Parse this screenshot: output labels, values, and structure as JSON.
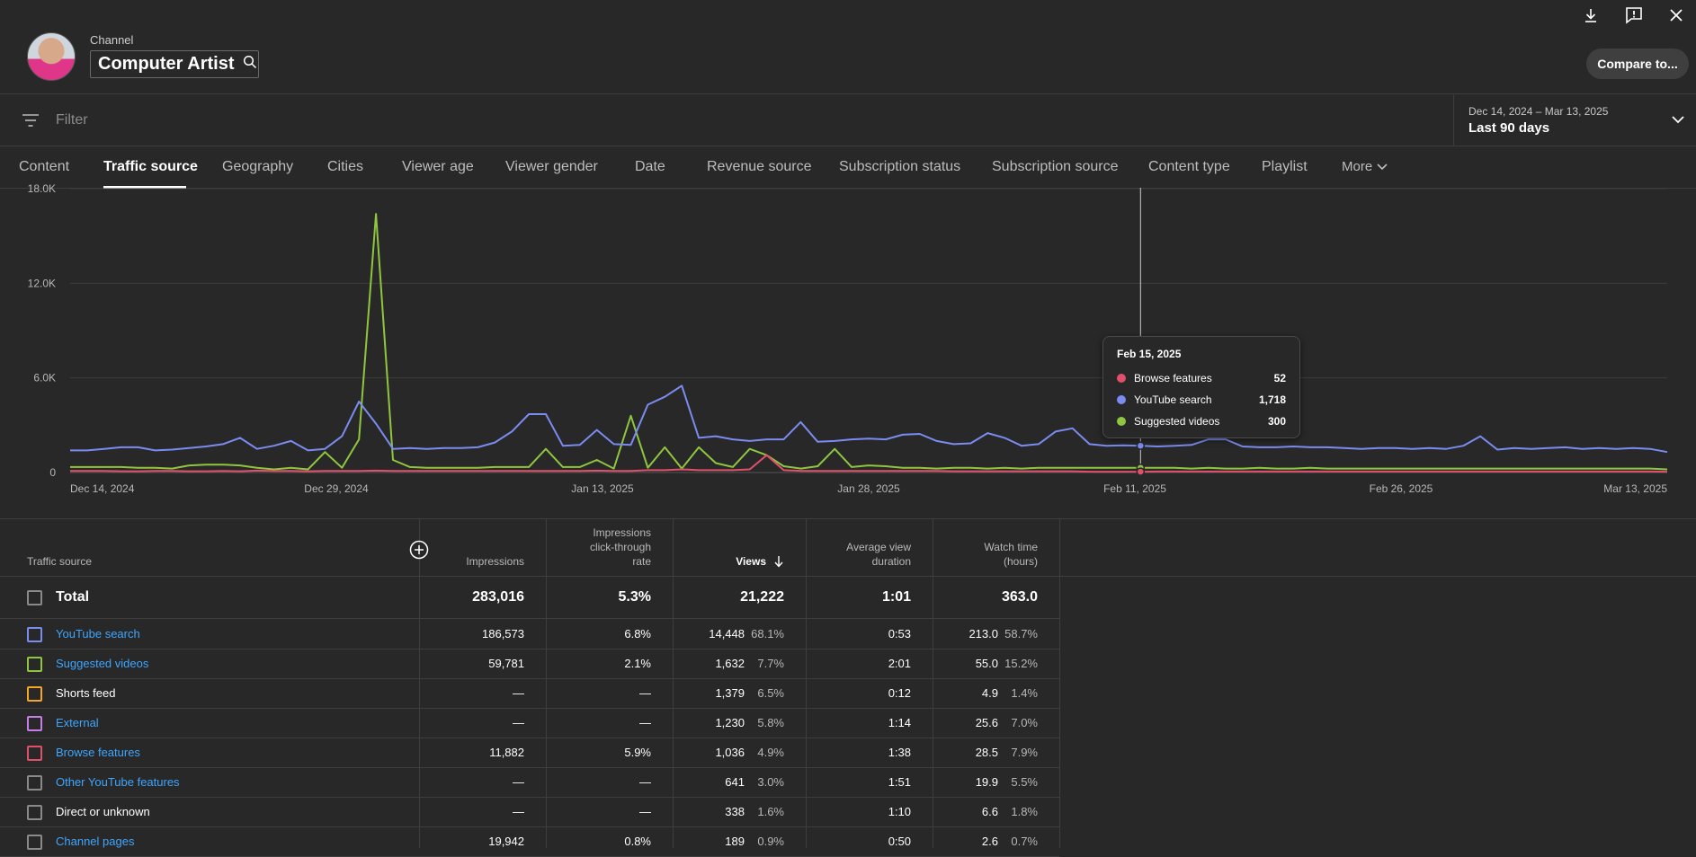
{
  "header": {
    "channel_label": "Channel",
    "channel_name": "Computer Artist",
    "compare_label": "Compare to..."
  },
  "filter": {
    "placeholder": "Filter"
  },
  "date_range": {
    "range": "Dec 14, 2024 – Mar 13, 2025",
    "preset": "Last 90 days"
  },
  "tabs": [
    {
      "label": "Content"
    },
    {
      "label": "Traffic source"
    },
    {
      "label": "Geography"
    },
    {
      "label": "Cities"
    },
    {
      "label": "Viewer age"
    },
    {
      "label": "Viewer gender"
    },
    {
      "label": "Date"
    },
    {
      "label": "Revenue source"
    },
    {
      "label": "Subscription status"
    },
    {
      "label": "Subscription source"
    },
    {
      "label": "Content type"
    },
    {
      "label": "Playlist"
    },
    {
      "label": "More"
    }
  ],
  "tooltip": {
    "date": "Feb 15, 2025",
    "rows": [
      {
        "name": "Browse features",
        "value": "52"
      },
      {
        "name": "YouTube search",
        "value": "1,718"
      },
      {
        "name": "Suggested videos",
        "value": "300"
      }
    ]
  },
  "chart_data": {
    "type": "line",
    "x_labels": [
      "Dec 14, 2024",
      "Dec 29, 2024",
      "Jan 13, 2025",
      "Jan 28, 2025",
      "Feb 11, 2025",
      "Feb 26, 2025",
      "Mar 13, 2025"
    ],
    "y_ticks": [
      "0",
      "6.0K",
      "12.0K",
      "18.0K"
    ],
    "ylim": [
      0,
      18000
    ],
    "grid": true,
    "colors": {
      "youtube_search": "#7b8cf0",
      "suggested": "#8fc63f",
      "browse": "#e0506b"
    },
    "series": [
      {
        "name": "YouTube search",
        "color": "#7b8cf0",
        "values": [
          1400,
          1400,
          1500,
          1600,
          1600,
          1400,
          1450,
          1550,
          1650,
          1800,
          2200,
          1500,
          1700,
          2000,
          1400,
          1500,
          2300,
          4500,
          3100,
          1500,
          1550,
          1500,
          1550,
          1550,
          1600,
          1900,
          2600,
          3700,
          3700,
          1700,
          1750,
          2700,
          1800,
          1750,
          4300,
          4800,
          5500,
          2200,
          2300,
          2100,
          2000,
          2100,
          2100,
          3200,
          1950,
          2000,
          2100,
          2150,
          2100,
          2400,
          2450,
          2000,
          1800,
          1850,
          2500,
          2200,
          1700,
          1800,
          2600,
          2800,
          1800,
          1700,
          1718,
          1700,
          1650,
          1700,
          1750,
          2100,
          2100,
          1650,
          1600,
          1600,
          1650,
          1600,
          1600,
          1550,
          1500,
          1550,
          1550,
          1500,
          1550,
          1500,
          1700,
          2300,
          1450,
          1550,
          1500,
          1550,
          1600,
          1500,
          1550,
          1500,
          1550,
          1500,
          1300
        ]
      },
      {
        "name": "Suggested videos",
        "color": "#8fc63f",
        "values": [
          350,
          350,
          350,
          350,
          300,
          300,
          250,
          450,
          500,
          500,
          450,
          300,
          200,
          300,
          200,
          1300,
          300,
          2100,
          16400,
          800,
          350,
          300,
          300,
          300,
          300,
          350,
          350,
          350,
          1500,
          350,
          350,
          800,
          250,
          3600,
          300,
          1600,
          250,
          1600,
          600,
          350,
          1500,
          1100,
          400,
          250,
          400,
          1500,
          350,
          450,
          400,
          300,
          300,
          250,
          300,
          300,
          250,
          300,
          250,
          300,
          300,
          300,
          300,
          300,
          300,
          300,
          300,
          300,
          250,
          300,
          250,
          250,
          300,
          250,
          250,
          300,
          250,
          250,
          250,
          250,
          250,
          250,
          250,
          250,
          250,
          250,
          250,
          250,
          250,
          250,
          250,
          250,
          250,
          250,
          250,
          250,
          200
        ]
      },
      {
        "name": "Browse features",
        "color": "#e0506b",
        "values": [
          100,
          100,
          100,
          80,
          80,
          100,
          100,
          80,
          80,
          100,
          80,
          120,
          100,
          100,
          80,
          100,
          100,
          100,
          120,
          100,
          100,
          100,
          100,
          100,
          100,
          100,
          100,
          100,
          100,
          100,
          100,
          120,
          100,
          100,
          150,
          150,
          200,
          150,
          150,
          150,
          200,
          1100,
          150,
          100,
          100,
          100,
          100,
          100,
          100,
          100,
          100,
          100,
          80,
          80,
          80,
          80,
          80,
          80,
          80,
          80,
          52,
          52,
          52,
          52,
          60,
          60,
          60,
          60,
          60,
          60,
          60,
          60,
          60,
          60,
          60,
          60,
          60,
          60,
          60,
          60,
          60,
          60,
          60,
          60,
          60,
          60,
          60,
          60,
          60,
          60,
          60,
          60,
          60,
          60,
          50
        ]
      }
    ]
  },
  "table": {
    "headers": {
      "source": "Traffic source",
      "impressions": "Impressions",
      "ctr_1": "Impressions",
      "ctr_2": "click-through",
      "ctr_3": "rate",
      "views": "Views",
      "avd_1": "Average view",
      "avd_2": "duration",
      "wt_1": "Watch time",
      "wt_2": "(hours)"
    },
    "total": {
      "name": "Total",
      "impressions": "283,016",
      "ctr": "5.3%",
      "views": "21,222",
      "avd": "1:01",
      "watch": "363.0"
    },
    "rows": [
      {
        "name": "YouTube search",
        "color": "#7b8cf0",
        "link": true,
        "impressions": "186,573",
        "ctr": "6.8%",
        "views": "14,448",
        "views_pct": "68.1%",
        "avd": "0:53",
        "watch": "213.0",
        "watch_pct": "58.7%"
      },
      {
        "name": "Suggested videos",
        "color": "#8fc63f",
        "link": true,
        "impressions": "59,781",
        "ctr": "2.1%",
        "views": "1,632",
        "views_pct": "7.7%",
        "avd": "2:01",
        "watch": "55.0",
        "watch_pct": "15.2%"
      },
      {
        "name": "Shorts feed",
        "color": "#f5a623",
        "link": false,
        "impressions": "—",
        "ctr": "—",
        "views": "1,379",
        "views_pct": "6.5%",
        "avd": "0:12",
        "watch": "4.9",
        "watch_pct": "1.4%"
      },
      {
        "name": "External",
        "color": "#c77ce8",
        "link": true,
        "impressions": "—",
        "ctr": "—",
        "views": "1,230",
        "views_pct": "5.8%",
        "avd": "1:14",
        "watch": "25.6",
        "watch_pct": "7.0%"
      },
      {
        "name": "Browse features",
        "color": "#e0506b",
        "link": true,
        "impressions": "11,882",
        "ctr": "5.9%",
        "views": "1,036",
        "views_pct": "4.9%",
        "avd": "1:38",
        "watch": "28.5",
        "watch_pct": "7.9%"
      },
      {
        "name": "Other YouTube features",
        "color": "#8a8a8a",
        "link": true,
        "impressions": "—",
        "ctr": "—",
        "views": "641",
        "views_pct": "3.0%",
        "avd": "1:51",
        "watch": "19.9",
        "watch_pct": "5.5%"
      },
      {
        "name": "Direct or unknown",
        "color": "#8a8a8a",
        "link": false,
        "impressions": "—",
        "ctr": "—",
        "views": "338",
        "views_pct": "1.6%",
        "avd": "1:10",
        "watch": "6.6",
        "watch_pct": "1.8%"
      },
      {
        "name": "Channel pages",
        "color": "#8a8a8a",
        "link": true,
        "impressions": "19,942",
        "ctr": "0.8%",
        "views": "189",
        "views_pct": "0.9%",
        "avd": "0:50",
        "watch": "2.6",
        "watch_pct": "0.7%"
      }
    ]
  }
}
